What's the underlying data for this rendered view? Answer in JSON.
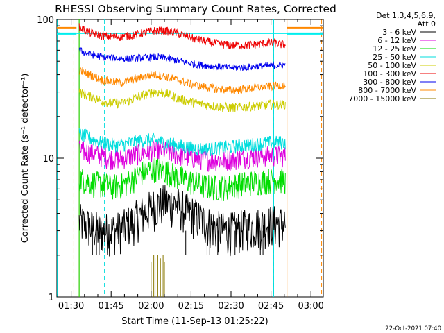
{
  "chart_data": {
    "type": "line",
    "title": "RHESSI Observing Summary Count Rates, Corrected",
    "xlabel": "Start Time (11-Sep-13 01:25:22)",
    "ylabel": "Corrected Count Rate (s⁻¹ detector⁻¹)",
    "yscale": "log",
    "ylim": [
      1,
      100
    ],
    "xlim_minutes": [
      84.633,
      184.633
    ],
    "x_ticks": [
      {
        "label": "01:30",
        "minute": 90
      },
      {
        "label": "01:45",
        "minute": 105
      },
      {
        "label": "02:00",
        "minute": 120
      },
      {
        "label": "02:15",
        "minute": 135
      },
      {
        "label": "02:30",
        "minute": 150
      },
      {
        "label": "02:45",
        "minute": 165
      },
      {
        "label": "03:00",
        "minute": 180
      }
    ],
    "y_ticks": [
      {
        "label": "1",
        "value": 1
      },
      {
        "label": "10",
        "value": 10
      },
      {
        "label": "100",
        "value": 100
      }
    ],
    "legend_header": [
      "Det 1,3,4,5,6,9,",
      "Att 0"
    ],
    "legend_position": "right",
    "timestamp": "22-Oct-2021 07:40",
    "x_samples_minutes": [
      93,
      97,
      101,
      105,
      109,
      113,
      117,
      121,
      125,
      129,
      133,
      137,
      141,
      145,
      149,
      153,
      157,
      161,
      165,
      169
    ],
    "series": [
      {
        "name": "3 - 6 keV",
        "color": "#000000",
        "noise": 0.35,
        "values": [
          3.5,
          3.2,
          3.0,
          3.0,
          3.1,
          3.5,
          4.0,
          4.5,
          4.8,
          4.7,
          4.2,
          3.8,
          3.4,
          3.1,
          3.0,
          3.1,
          3.2,
          3.3,
          3.4,
          3.4
        ]
      },
      {
        "name": "6 - 12 keV",
        "color": "#dd00dd",
        "noise": 0.18,
        "values": [
          11.5,
          11.0,
          10.5,
          10.0,
          10.0,
          10.5,
          11.0,
          11.5,
          11.3,
          10.8,
          10.3,
          10.0,
          9.8,
          9.7,
          9.8,
          10.0,
          10.2,
          10.4,
          10.5,
          10.4
        ]
      },
      {
        "name": "12 - 25 keV",
        "color": "#00dd00",
        "noise": 0.22,
        "values": [
          7.2,
          6.8,
          6.5,
          6.3,
          6.4,
          7.0,
          8.0,
          8.5,
          8.2,
          7.5,
          7.0,
          6.6,
          6.3,
          6.2,
          6.3,
          6.5,
          6.7,
          6.9,
          7.0,
          7.0
        ]
      },
      {
        "name": "25 - 50 keV",
        "color": "#00dddd",
        "noise": 0.12,
        "values": [
          15.0,
          14.0,
          13.0,
          12.5,
          12.5,
          13.0,
          13.5,
          13.5,
          13.0,
          12.5,
          12.0,
          11.8,
          11.7,
          11.8,
          12.0,
          12.3,
          12.5,
          12.8,
          13.0,
          13.0
        ]
      },
      {
        "name": "50 - 100 keV",
        "color": "#cccc00",
        "noise": 0.08,
        "values": [
          30.0,
          28.0,
          26.0,
          25.0,
          25.0,
          26.5,
          28.5,
          30.0,
          29.5,
          27.5,
          26.0,
          25.0,
          24.2,
          23.5,
          23.2,
          23.3,
          23.6,
          24.0,
          24.5,
          24.5
        ]
      },
      {
        "name": "100 - 300 keV",
        "color": "#ee0000",
        "noise": 0.07,
        "values": [
          88.0,
          80.0,
          77.0,
          75.0,
          75.0,
          77.0,
          80.0,
          83.0,
          83.0,
          80.0,
          76.0,
          72.0,
          69.0,
          67.0,
          65.5,
          65.0,
          65.5,
          66.5,
          68.0,
          66.0
        ]
      },
      {
        "name": "300 - 800 keV",
        "color": "#0000ee",
        "noise": 0.06,
        "values": [
          60.0,
          56.0,
          54.0,
          53.0,
          52.0,
          52.5,
          53.0,
          53.5,
          53.0,
          51.0,
          49.0,
          47.5,
          46.5,
          45.5,
          45.0,
          45.0,
          45.5,
          46.0,
          46.5,
          47.0
        ]
      },
      {
        "name": "800 - 7000 keV",
        "color": "#ff8800",
        "noise": 0.07,
        "values": [
          43.0,
          40.0,
          37.0,
          35.5,
          35.0,
          36.5,
          38.5,
          40.0,
          39.0,
          37.0,
          35.0,
          33.5,
          32.5,
          31.5,
          31.0,
          31.2,
          31.8,
          32.5,
          33.0,
          33.5
        ]
      },
      {
        "name": "7000 - 15000 keV",
        "color": "#887700",
        "noise": 0.0,
        "values": []
      }
    ],
    "extra_segments_comment": "",
    "attenuator_lines_minutes": {
      "orange_dashed": [
        91.0,
        184.0
      ],
      "orange_solid": [
        93.0,
        171.0
      ],
      "cyan_dashed": [
        102.5,
        166.0
      ],
      "cyan_solid": [
        84.8,
        166.0
      ],
      "green": [
        93.0,
        184.5
      ]
    },
    "brown_spikes": {
      "x_minutes": [
        120.0,
        121.0,
        121.5,
        122.5,
        123.5,
        124.5,
        125.0
      ],
      "values": [
        1.8,
        2.0,
        1.9,
        2.0,
        1.9,
        2.0,
        1.8
      ]
    },
    "flat_top_lines": {
      "value": 80,
      "x_minutes": [
        84.633,
        92.0,
        171.0,
        184.633
      ]
    }
  }
}
